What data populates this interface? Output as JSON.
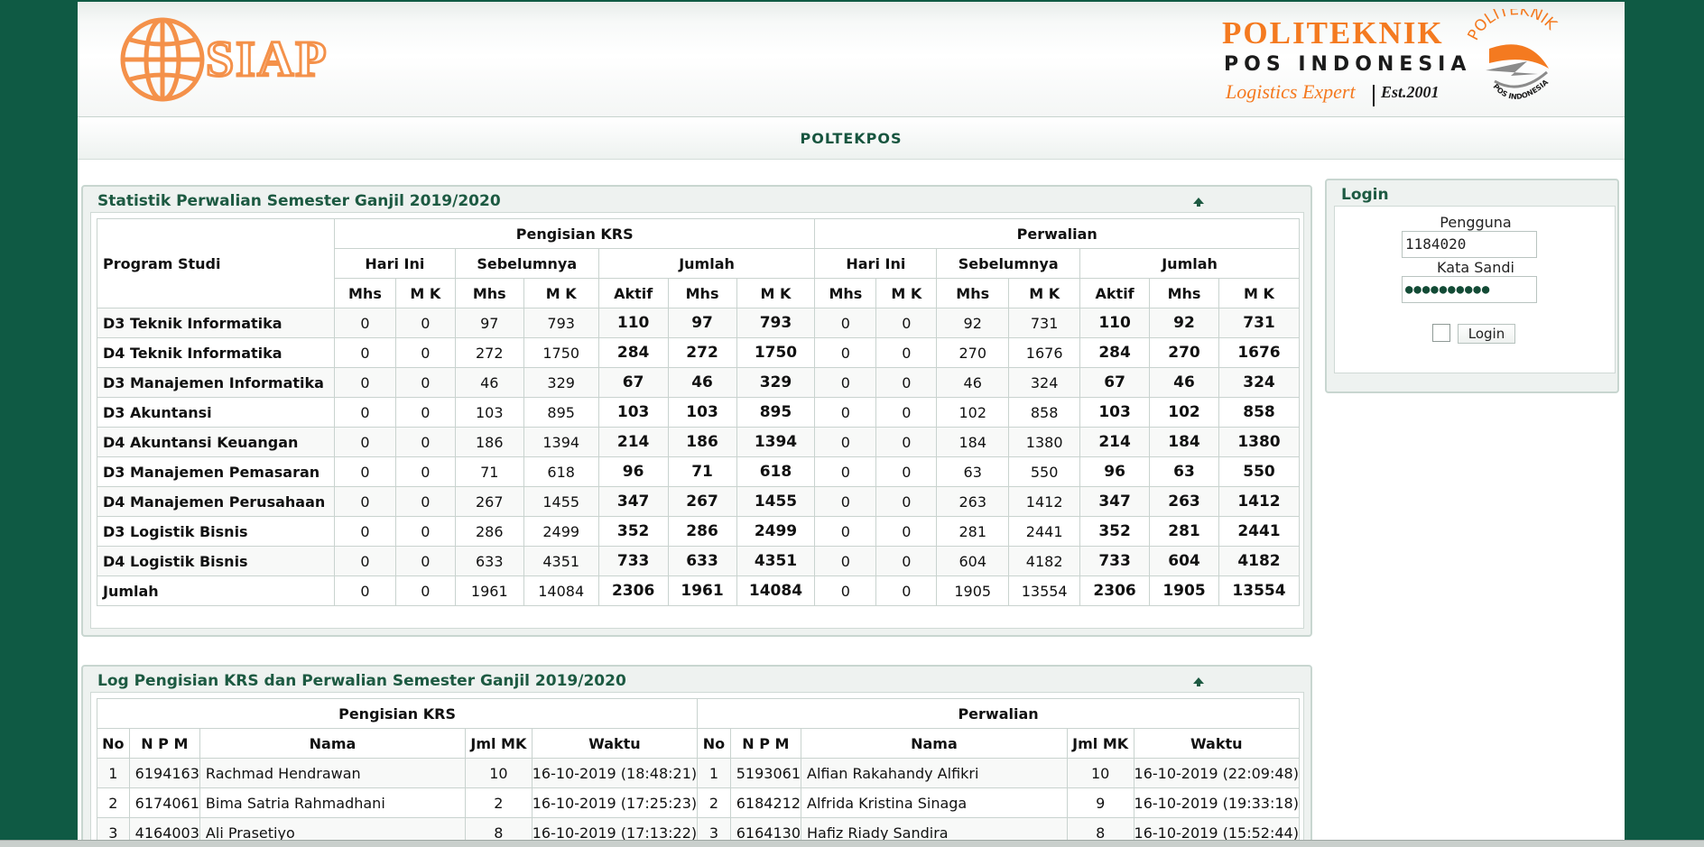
{
  "header": {
    "siap_logo_text": "SIAP",
    "poltek_name_line1": "POLITEKNIK",
    "poltek_name_line2": "POS INDONESIA",
    "tagline": "Logistics Expert",
    "established": "Est.2001",
    "seal_top_text": "POLITEKNIK",
    "seal_bottom_text": "POS INDONESIA",
    "brand_colors": {
      "orange": "#f47a20",
      "green": "#0f5a44",
      "dark": "#1b1b1b"
    }
  },
  "subbar": {
    "title": "POLTEKPOS"
  },
  "stat_panel": {
    "title": "Statistik Perwalian Semester Ganjil 2019/2020",
    "col_program": "Program Studi",
    "group_krs": "Pengisian KRS",
    "group_perwalian": "Perwalian",
    "sub_hari_ini": "Hari Ini",
    "sub_sebelumnya": "Sebelumnya",
    "sub_jumlah": "Jumlah",
    "mhs": "Mhs",
    "mk": "M K",
    "aktif": "Aktif",
    "rows": [
      [
        "D3 Teknik Informatika",
        "0",
        "0",
        "97",
        "793",
        "110",
        "97",
        "793",
        "0",
        "0",
        "92",
        "731",
        "110",
        "92",
        "731"
      ],
      [
        "D4 Teknik Informatika",
        "0",
        "0",
        "272",
        "1750",
        "284",
        "272",
        "1750",
        "0",
        "0",
        "270",
        "1676",
        "284",
        "270",
        "1676"
      ],
      [
        "D3 Manajemen Informatika",
        "0",
        "0",
        "46",
        "329",
        "67",
        "46",
        "329",
        "0",
        "0",
        "46",
        "324",
        "67",
        "46",
        "324"
      ],
      [
        "D3 Akuntansi",
        "0",
        "0",
        "103",
        "895",
        "103",
        "103",
        "895",
        "0",
        "0",
        "102",
        "858",
        "103",
        "102",
        "858"
      ],
      [
        "D4 Akuntansi Keuangan",
        "0",
        "0",
        "186",
        "1394",
        "214",
        "186",
        "1394",
        "0",
        "0",
        "184",
        "1380",
        "214",
        "184",
        "1380"
      ],
      [
        "D3 Manajemen Pemasaran",
        "0",
        "0",
        "71",
        "618",
        "96",
        "71",
        "618",
        "0",
        "0",
        "63",
        "550",
        "96",
        "63",
        "550"
      ],
      [
        "D4 Manajemen Perusahaan",
        "0",
        "0",
        "267",
        "1455",
        "347",
        "267",
        "1455",
        "0",
        "0",
        "263",
        "1412",
        "347",
        "263",
        "1412"
      ],
      [
        "D3 Logistik Bisnis",
        "0",
        "0",
        "286",
        "2499",
        "352",
        "286",
        "2499",
        "0",
        "0",
        "281",
        "2441",
        "352",
        "281",
        "2441"
      ],
      [
        "D4 Logistik Bisnis",
        "0",
        "0",
        "633",
        "4351",
        "733",
        "633",
        "4351",
        "0",
        "0",
        "604",
        "4182",
        "733",
        "604",
        "4182"
      ],
      [
        "Jumlah",
        "0",
        "0",
        "1961",
        "14084",
        "2306",
        "1961",
        "14084",
        "0",
        "0",
        "1905",
        "13554",
        "2306",
        "1905",
        "13554"
      ]
    ]
  },
  "log_panel": {
    "title": "Log Pengisian KRS dan Perwalian Semester Ganjil 2019/2020",
    "group_krs": "Pengisian KRS",
    "group_perwalian": "Perwalian",
    "col_no": "No",
    "col_npm": "N P M",
    "col_nama": "Nama",
    "col_jml": "Jml MK",
    "col_waktu": "Waktu",
    "rows": [
      [
        "1",
        "6194163",
        "Rachmad Hendrawan",
        "10",
        "16-10-2019 (18:48:21)",
        "1",
        "5193061",
        "Alfian Rakahandy Alfikri",
        "10",
        "16-10-2019 (22:09:48)"
      ],
      [
        "2",
        "6174061",
        "Bima Satria Rahmadhani",
        "2",
        "16-10-2019 (17:25:23)",
        "2",
        "6184212",
        "Alfrida Kristina Sinaga",
        "9",
        "16-10-2019 (19:33:18)"
      ],
      [
        "3",
        "4164003",
        "Ali Prasetiyo",
        "8",
        "16-10-2019 (17:13:22)",
        "3",
        "6164130",
        "Hafiz Riady Sandira",
        "8",
        "16-10-2019 (15:52:44)"
      ]
    ]
  },
  "login": {
    "title": "Login",
    "user_label": "Pengguna",
    "user_value": "1184020",
    "pass_label": "Kata Sandi",
    "pass_value": "●●●●●●●●●●",
    "button_label": "Login"
  }
}
